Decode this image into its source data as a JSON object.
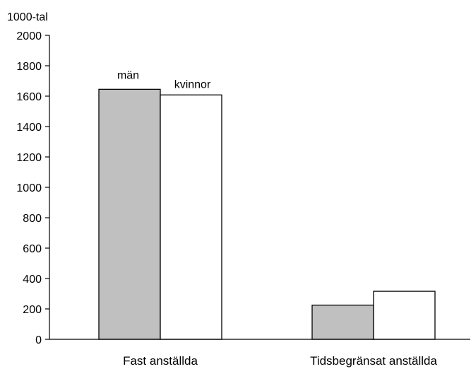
{
  "chart_data": {
    "type": "bar",
    "title": "",
    "xlabel": "",
    "ylabel": "1000-tal",
    "ylim": [
      0,
      2000
    ],
    "yticks": [
      0,
      200,
      400,
      600,
      800,
      1000,
      1200,
      1400,
      1600,
      1800,
      2000
    ],
    "categories": [
      "Fast anställda",
      "Tidsbegränsat anställda"
    ],
    "series": [
      {
        "name": "män",
        "values": [
          1645,
          225
        ],
        "color": "#c0c0c0"
      },
      {
        "name": "kvinnor",
        "values": [
          1608,
          316
        ],
        "color": "#ffffff"
      }
    ],
    "grid": false,
    "legend": "series labels above first group of bars"
  }
}
